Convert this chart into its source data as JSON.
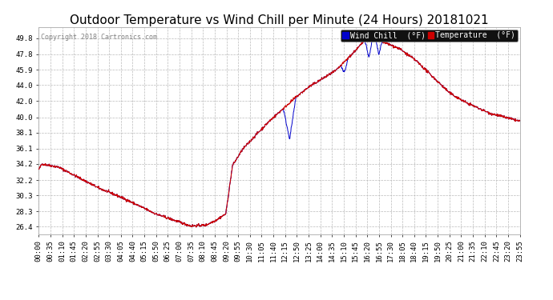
{
  "title": "Outdoor Temperature vs Wind Chill per Minute (24 Hours) 20181021",
  "copyright": "Copyright 2018 Cartronics.com",
  "legend_wind_chill": "Wind Chill  (°F)",
  "legend_temperature": "Temperature  (°F)",
  "ylabel_values": [
    26.4,
    28.3,
    30.3,
    32.2,
    34.2,
    36.1,
    38.1,
    40.0,
    42.0,
    44.0,
    45.9,
    47.8,
    49.8
  ],
  "ylim": [
    25.5,
    51.2
  ],
  "background_color": "#ffffff",
  "grid_color": "#bbbbbb",
  "temp_color": "#cc0000",
  "wind_color": "#0000cc",
  "title_fontsize": 11,
  "tick_fontsize": 6.5,
  "x_tick_labels": [
    "00:00",
    "00:35",
    "01:10",
    "01:45",
    "02:20",
    "02:55",
    "03:30",
    "04:05",
    "04:40",
    "05:15",
    "05:50",
    "06:25",
    "07:00",
    "07:35",
    "08:10",
    "08:45",
    "09:20",
    "09:55",
    "10:30",
    "11:05",
    "11:40",
    "12:15",
    "12:50",
    "13:25",
    "14:00",
    "14:35",
    "15:10",
    "15:45",
    "16:20",
    "16:55",
    "17:30",
    "18:05",
    "18:40",
    "19:15",
    "19:50",
    "20:25",
    "21:00",
    "21:35",
    "22:10",
    "22:45",
    "23:20",
    "23:55"
  ],
  "num_minutes": 1440
}
